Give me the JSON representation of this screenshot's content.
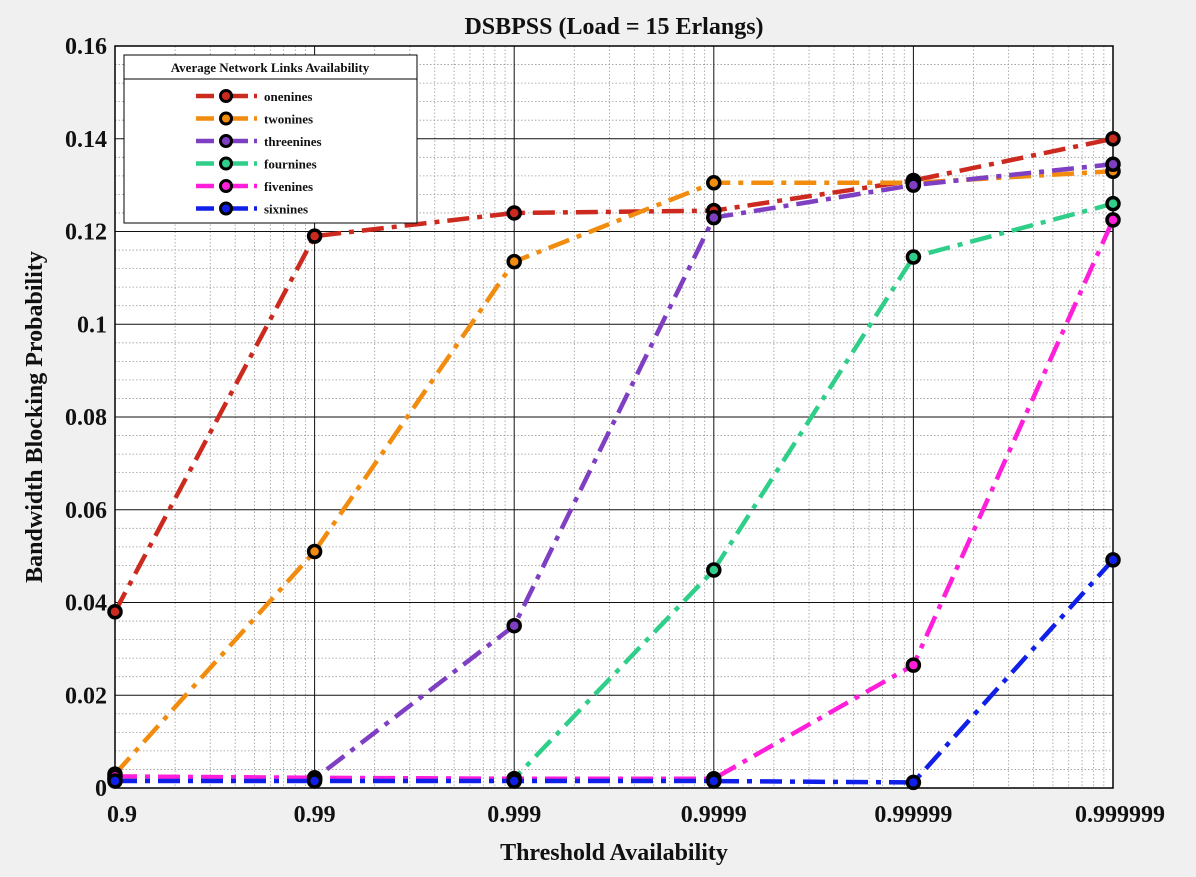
{
  "chart_data": {
    "type": "line",
    "title": "DSBPSS (Load  = 15 Erlangs)",
    "xlabel": "Threshold Availability",
    "ylabel": "Bandwidth Blocking Probability",
    "x_scale": "log (-log10(1-x))",
    "categories": [
      "0.9",
      "0.99",
      "0.999",
      "0.9999",
      "0.99999",
      "0.999999"
    ],
    "ylim": [
      0,
      0.16
    ],
    "yticks": [
      "0",
      "0.02",
      "0.04",
      "0.06",
      "0.08",
      "0.1",
      "0.12",
      "0.14",
      "0.16"
    ],
    "ytick_values": [
      0,
      0.02,
      0.04,
      0.06,
      0.08,
      0.1,
      0.12,
      0.14,
      0.16
    ],
    "grid": true,
    "minor_grid": true,
    "legend": {
      "title": "Average Network Links Availability",
      "position": "top-left"
    },
    "series": [
      {
        "name": "onenines",
        "color": "#cc2a1f",
        "values": [
          0.038,
          0.119,
          0.124,
          0.1245,
          0.131,
          0.14
        ]
      },
      {
        "name": "twonines",
        "color": "#f28c0f",
        "values": [
          0.003,
          0.051,
          0.1135,
          0.1305,
          0.1305,
          0.133
        ]
      },
      {
        "name": "threenines",
        "color": "#7e3fc2",
        "values": [
          0.002,
          0.002,
          0.035,
          0.123,
          0.13,
          0.1345
        ]
      },
      {
        "name": "fournines",
        "color": "#2fcf8a",
        "values": [
          0.002,
          0.002,
          0.002,
          0.047,
          0.1145,
          0.126
        ]
      },
      {
        "name": "fivenines",
        "color": "#ff1ed9",
        "values": [
          0.0025,
          0.0022,
          0.002,
          0.002,
          0.0265,
          0.1225
        ]
      },
      {
        "name": "sixnines",
        "color": "#1020e8",
        "values": [
          0.0015,
          0.0015,
          0.0015,
          0.0015,
          0.0012,
          0.0492
        ]
      }
    ]
  }
}
